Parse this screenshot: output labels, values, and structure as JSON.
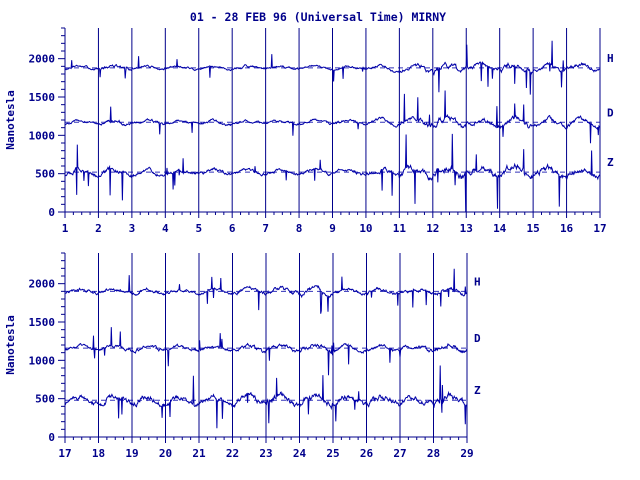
{
  "title": "01 - 28 FEB 96 (Universal Time) MIRNY",
  "colors": {
    "trace": "#0000a8",
    "axis": "#00008b",
    "text": "#00008b"
  },
  "chart_data": [
    {
      "type": "line",
      "ylabel": "Nanotesla",
      "xlim": [
        1,
        17
      ],
      "ylim": [
        0,
        2400
      ],
      "x_ticks": [
        "1",
        "2",
        "3",
        "4",
        "5",
        "6",
        "7",
        "8",
        "9",
        "10",
        "11",
        "12",
        "13",
        "14",
        "15",
        "16",
        "17"
      ],
      "y_ticks": [
        0,
        500,
        1000,
        1500,
        2000
      ],
      "y_tick_labels": [
        "0",
        "500",
        "1000",
        "1500",
        "2000"
      ],
      "series": [
        {
          "name": "H",
          "baseline": 1880,
          "activity": [
            1.0,
            1.6,
            1.2,
            1.1,
            1.0,
            1.3,
            1.2,
            1.1,
            1.2,
            1.5,
            2.4,
            3.0,
            2.0,
            2.6,
            2.2,
            2.0
          ]
        },
        {
          "name": "D",
          "baseline": 1170,
          "activity": [
            1.2,
            1.8,
            1.4,
            1.2,
            1.6,
            1.3,
            1.2,
            1.2,
            1.3,
            1.7,
            2.6,
            3.4,
            2.4,
            2.8,
            2.4,
            2.2
          ]
        },
        {
          "name": "Z",
          "baseline": 520,
          "activity": [
            2.4,
            2.6,
            1.8,
            1.6,
            1.8,
            1.6,
            1.5,
            1.6,
            1.6,
            2.2,
            3.4,
            4.0,
            3.0,
            3.6,
            3.2,
            2.8
          ]
        }
      ]
    },
    {
      "type": "line",
      "ylabel": "Nanotesla",
      "xlim": [
        17,
        29
      ],
      "ylim": [
        0,
        2400
      ],
      "x_ticks": [
        "17",
        "18",
        "19",
        "20",
        "21",
        "22",
        "23",
        "24",
        "25",
        "26",
        "27",
        "28",
        "29"
      ],
      "y_ticks": [
        0,
        500,
        1000,
        1500,
        2000
      ],
      "y_tick_labels": [
        "0",
        "500",
        "1000",
        "1500",
        "2000"
      ],
      "series": [
        {
          "name": "H",
          "baseline": 1900,
          "activity": [
            1.6,
            1.5,
            1.8,
            1.4,
            1.4,
            2.0,
            2.2,
            2.6,
            1.6,
            1.8,
            1.6,
            2.0
          ]
        },
        {
          "name": "D",
          "baseline": 1160,
          "activity": [
            1.6,
            1.8,
            2.0,
            1.6,
            1.6,
            2.2,
            2.0,
            2.4,
            1.8,
            2.0,
            1.8,
            2.2
          ]
        },
        {
          "name": "Z",
          "baseline": 480,
          "activity": [
            2.8,
            3.0,
            3.2,
            2.6,
            2.6,
            3.0,
            3.4,
            3.6,
            2.8,
            3.2,
            3.0,
            3.4
          ]
        }
      ]
    }
  ]
}
